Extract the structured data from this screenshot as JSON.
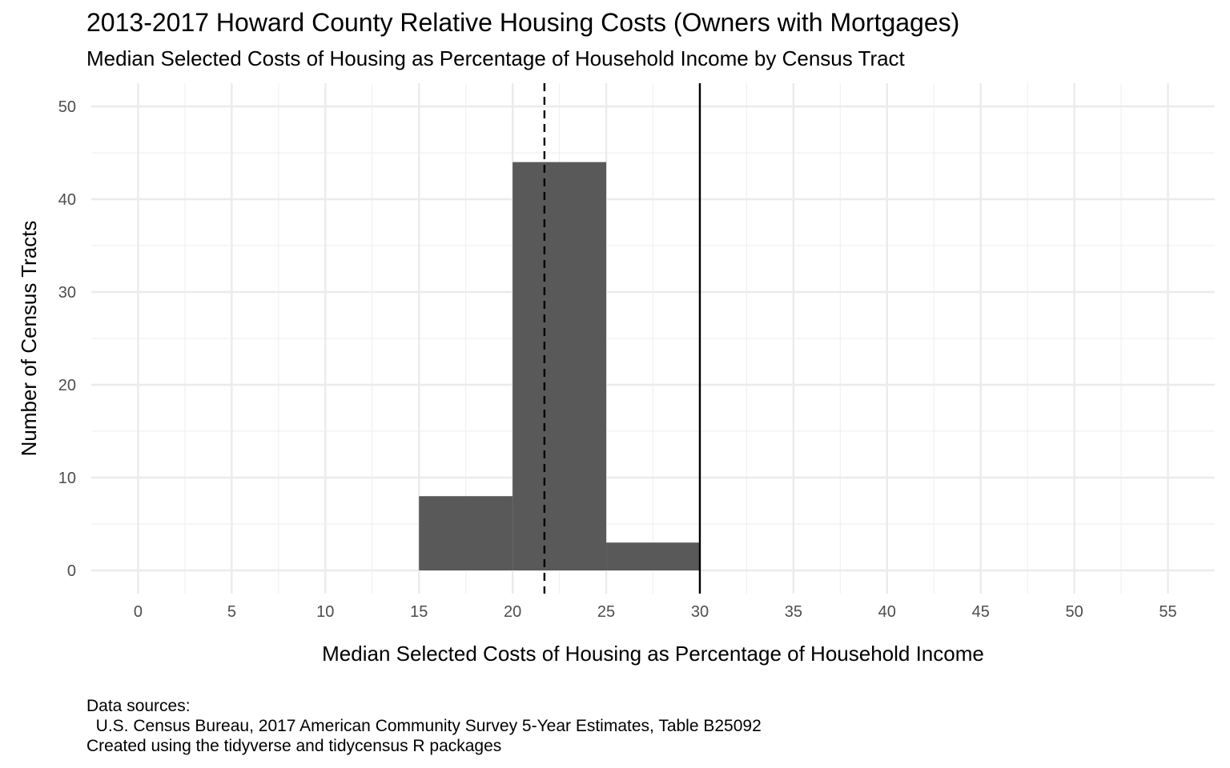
{
  "chart_data": {
    "type": "bar",
    "title": "2013-2017 Howard County Relative Housing Costs (Owners with Mortgages)",
    "subtitle": "Median Selected Costs of Housing as Percentage of Household Income by Census Tract",
    "xlabel": "Median Selected Costs of Housing as Percentage of Household Income",
    "ylabel": "Number of Census Tracts",
    "caption": "Data sources:\n  U.S. Census Bureau, 2017 American Community Survey 5-Year Estimates, Table B25092\nCreated using the tidyverse and tidycensus R packages",
    "bins": [
      {
        "x0": 15,
        "x1": 20,
        "count": 8
      },
      {
        "x0": 20,
        "x1": 25,
        "count": 44
      },
      {
        "x0": 25,
        "x1": 30,
        "count": 3
      }
    ],
    "xlim": [
      -2.5,
      57.5
    ],
    "ylim": [
      -2.5,
      52.5
    ],
    "x_ticks": [
      0,
      5,
      10,
      15,
      20,
      25,
      30,
      35,
      40,
      45,
      50,
      55
    ],
    "y_ticks": [
      0,
      10,
      20,
      30,
      40,
      50
    ],
    "reference_lines": [
      {
        "x": 21.7,
        "style": "dashed"
      },
      {
        "x": 30,
        "style": "solid"
      }
    ],
    "bar_color": "#595959",
    "grid": true,
    "legend": "none"
  }
}
